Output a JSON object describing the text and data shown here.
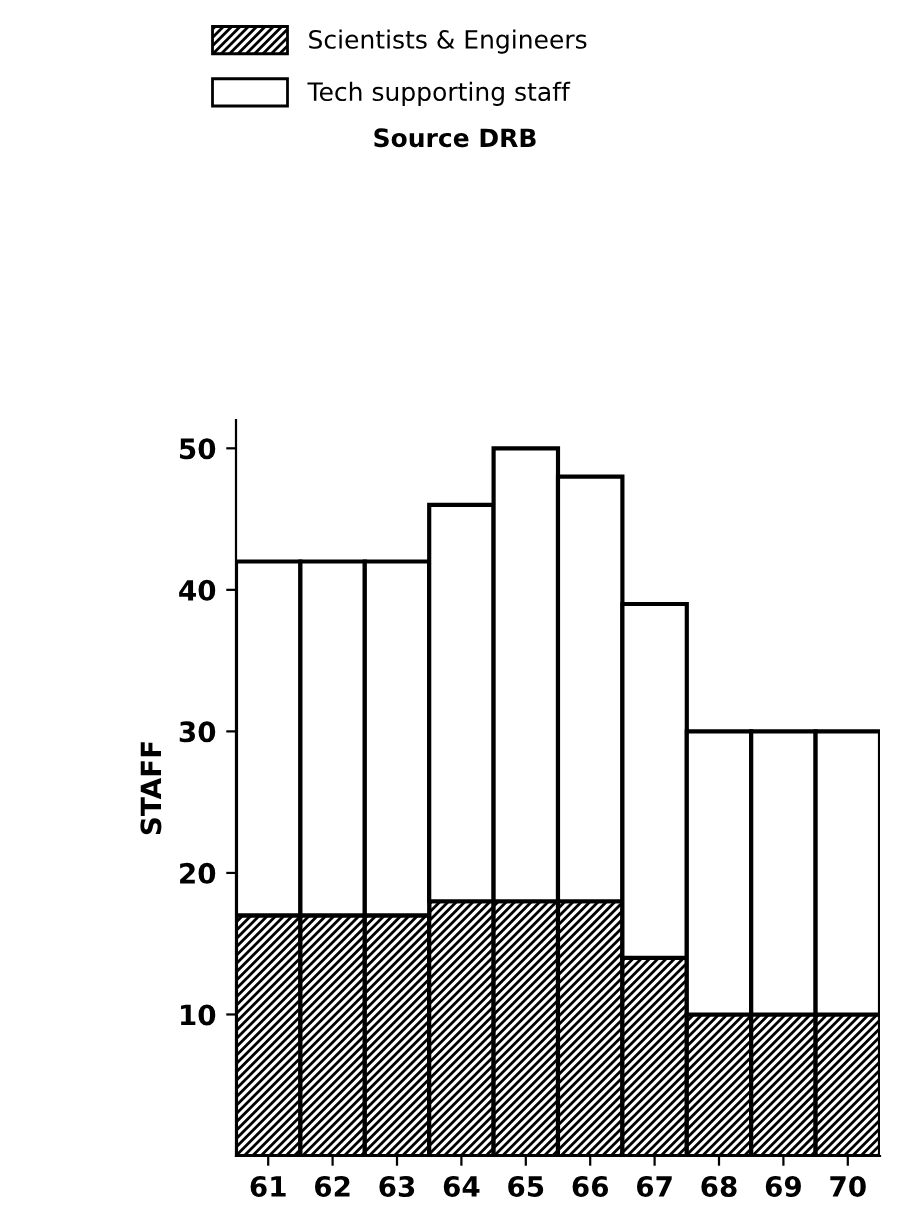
{
  "chart_data": {
    "type": "bar",
    "stacked": true,
    "ylabel": "STAFF",
    "categories": [
      "61",
      "62",
      "63",
      "64",
      "65",
      "66",
      "67",
      "68",
      "69",
      "70"
    ],
    "series": [
      {
        "name": "Scientists & Engineers",
        "color": "#000000",
        "values": [
          17,
          17,
          17,
          18,
          18,
          18,
          14,
          10,
          10,
          10
        ]
      },
      {
        "name": "Tech supporting staff",
        "color": "#ffffff",
        "values": [
          25,
          25,
          25,
          28,
          32,
          30,
          25,
          20,
          20,
          20
        ]
      }
    ],
    "ylim": [
      0,
      52
    ],
    "yticks": [
      10,
      20,
      30,
      40,
      50
    ],
    "grid": false,
    "legend": "top",
    "annotations": [
      "Source DRB"
    ]
  }
}
